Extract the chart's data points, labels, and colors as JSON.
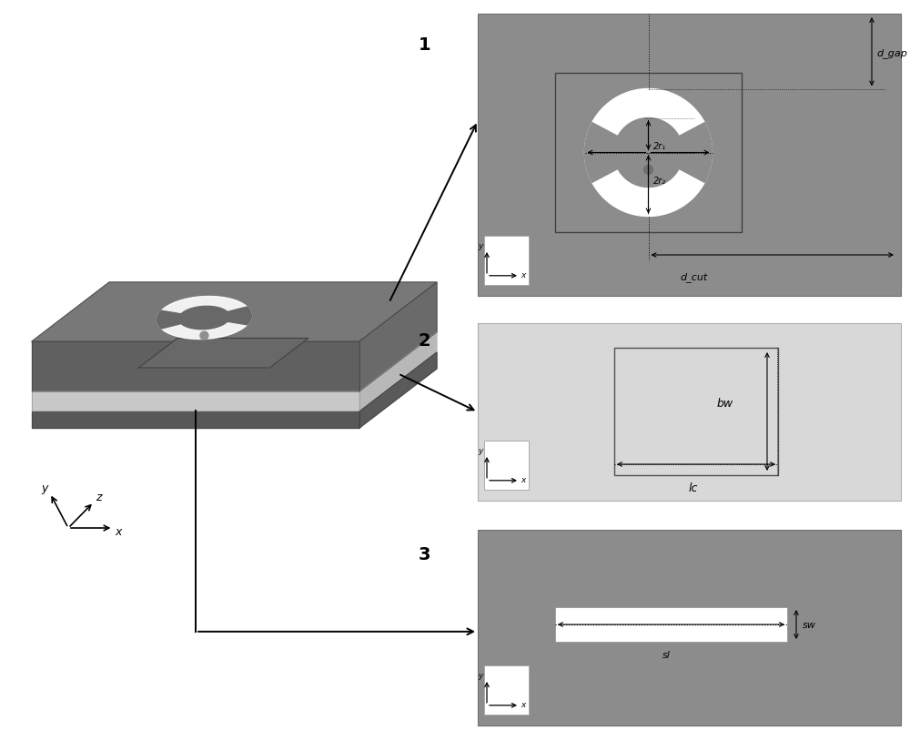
{
  "bg_color": "#ffffff",
  "panel1_bg": "#8c8c8c",
  "panel2_bg": "#d8d8d8",
  "panel3_bg": "#8c8c8c",
  "block_top_color": "#787878",
  "block_front_color": "#606060",
  "block_right_color": "#6a6a6a",
  "block_sub_front": "#c8c8c8",
  "block_sub_right": "#b8b8b8",
  "block_bot_color": "#585858",
  "ring_color": "#ffffff",
  "ring_inner_color": "#8c8c8c",
  "gap_color": "#8c8c8c",
  "dot_color": "#909090",
  "label1": "1",
  "label2": "2",
  "label3": "3",
  "text_dgap": "d_gap",
  "text_dcut": "d_cut",
  "text_2r1": "2r₁",
  "text_2r2": "2r₂",
  "text_bw": "bw",
  "text_lc": "lc",
  "text_sw": "sw",
  "text_sl": "sl"
}
